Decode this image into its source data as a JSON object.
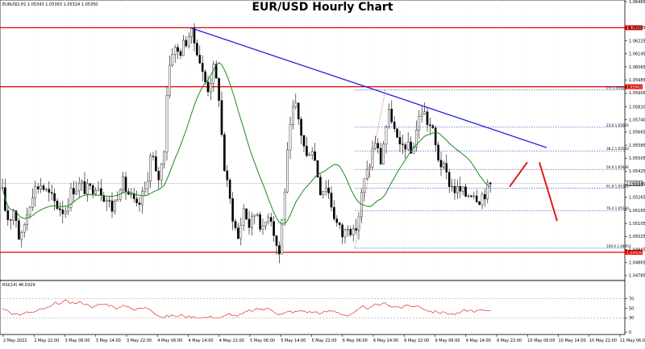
{
  "chart_data": {
    "type": "candlestick",
    "title": "EUR/USD Hourly Chart",
    "symbol_info": "EURUSD,H1",
    "ohlc_info": "1.05343  1.05363  1.05324  1.05350",
    "y_ticks": [
      "1.06465",
      "1.06305",
      "1.06225",
      "1.06145",
      "1.06065",
      "1.05985",
      "1.05905",
      "1.05820",
      "1.05740",
      "1.05665",
      "1.05585",
      "1.05505",
      "1.05425",
      "1.05345",
      "1.05265",
      "1.05185",
      "1.05105",
      "1.05025",
      "1.04945",
      "1.04865",
      "1.04785"
    ],
    "x_ticks": [
      "2 May 2022",
      "2 May 22:00",
      "3 May 06:00",
      "3 May 14:00",
      "3 May 22:00",
      "4 May 06:00",
      "4 May 14:00",
      "4 May 22:00",
      "5 May 06:00",
      "5 May 14:00",
      "5 May 22:00",
      "6 May 06:00",
      "6 May 14:00",
      "6 May 22:00",
      "9 May 06:00",
      "9 May 14:00",
      "9 May 22:00",
      "10 May 06:00",
      "10 May 14:00",
      "10 May 22:00",
      "11 May 06:00"
    ],
    "ylim": [
      1.04755,
      1.06475
    ],
    "resistance_levels": [
      {
        "price": 1.06305,
        "label": "1.06305"
      },
      {
        "price": 1.05943,
        "label": "1.05943"
      },
      {
        "price": 1.04928,
        "label": "1.04928"
      }
    ],
    "current_price": {
      "price": 1.0535,
      "label": "1.05350"
    },
    "fibonacci": [
      {
        "label": "0.0 1.05924",
        "price": 1.05924
      },
      {
        "label": "23.6 1.05695",
        "price": 1.05695
      },
      {
        "label": "38.2 1.05550",
        "price": 1.0555
      },
      {
        "label": "50.0 1.05436",
        "price": 1.05436
      },
      {
        "label": "61.8 1.05321",
        "price": 1.05321
      },
      {
        "label": "76.4 1.05184",
        "price": 1.05184
      },
      {
        "label": "100.0 1.04953",
        "price": 1.04953
      }
    ],
    "rsi": {
      "label": "RSI(14) 46.0329",
      "y_ticks": [
        "70",
        "50",
        "30",
        "0"
      ],
      "value": 46.0329
    },
    "colors": {
      "candle_up": "#ffffff",
      "candle_down": "#000000",
      "trendline": "#2020e0",
      "level_line": "#e00000",
      "moving_average": "#1a8a1a",
      "fib_line": "#3030c0",
      "rsi_line": "#e03030",
      "arrow": "#e01818"
    }
  }
}
